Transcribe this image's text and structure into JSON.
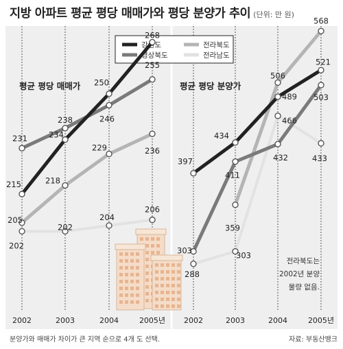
{
  "header": {
    "title": "지방 아파트 평균 평당 매매가와 평당 분양가 추이",
    "unit": "(단위: 만 원)"
  },
  "footer": {
    "left": "분양가와 매매가 차이가 큰 지역 순으로 4개 도 선택.",
    "right": "자료: 부동산뱅크"
  },
  "legend": [
    {
      "name": "강원도",
      "color": "#222222"
    },
    {
      "name": "경상북도",
      "color": "#7a7a7a"
    },
    {
      "name": "전라북도",
      "color": "#b4b4b4"
    },
    {
      "name": "전라남도",
      "color": "#e2e2e2"
    }
  ],
  "note": [
    "전라북도는",
    "2002년 분양",
    "물량 없음."
  ],
  "chart_data": [
    {
      "type": "line",
      "title": "평균 평당 매매가",
      "categories": [
        "2002",
        "2003",
        "2004",
        "2005년"
      ],
      "series": [
        {
          "name": "강원도",
          "values": [
            215,
            234,
            250,
            268
          ]
        },
        {
          "name": "경상북도",
          "values": [
            231,
            238,
            246,
            255
          ]
        },
        {
          "name": "전라북도",
          "values": [
            205,
            218,
            229,
            236
          ]
        },
        {
          "name": "전라남도",
          "values": [
            202,
            202,
            204,
            206
          ]
        }
      ]
    },
    {
      "type": "line",
      "title": "평균 평당 분양가",
      "categories": [
        "2002",
        "2003",
        "2004",
        "2005년"
      ],
      "series": [
        {
          "name": "강원도",
          "values": [
            397,
            434,
            489,
            521
          ]
        },
        {
          "name": "경상북도",
          "values": [
            303,
            411,
            432,
            503
          ]
        },
        {
          "name": "전라북도",
          "values": [
            null,
            359,
            506,
            568
          ]
        },
        {
          "name": "전라남도",
          "values": [
            288,
            303,
            466,
            433
          ]
        }
      ]
    }
  ]
}
